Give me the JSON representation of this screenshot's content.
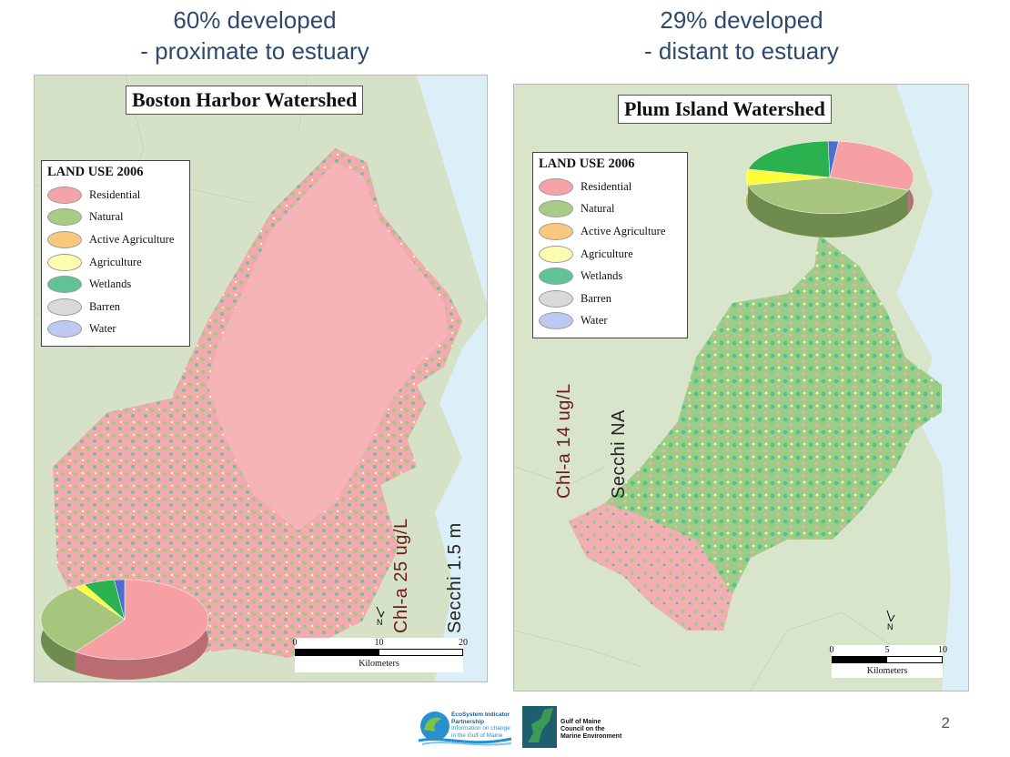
{
  "left": {
    "heading_line1": "60% developed",
    "heading_line2": "- proximate to estuary",
    "map_title": "Boston Harbor Watershed",
    "chla": "Chl-a 25 ug/L",
    "secchi": "Secchi 1.5 m",
    "scale": {
      "ticks": [
        "0",
        "10",
        "20"
      ],
      "unit": "Kilometers"
    },
    "pie_shares": [
      60,
      30,
      2,
      6,
      2
    ]
  },
  "right": {
    "heading_line1": "29% developed",
    "heading_line2": "- distant to estuary",
    "map_title": "Plum Island Watershed",
    "chla": "Chl-a 14 ug/L",
    "secchi": "Secchi NA",
    "scale": {
      "ticks": [
        "0",
        "5",
        "10"
      ],
      "unit": "Kilometers"
    },
    "pie_shares": [
      29,
      41,
      7,
      21,
      2
    ]
  },
  "legend": {
    "title": "LAND USE 2006",
    "items": [
      {
        "label": "Residential",
        "color": "#f4a3a8"
      },
      {
        "label": "Natural",
        "color": "#a8cc85"
      },
      {
        "label": "Active Agriculture",
        "color": "#f8c97c"
      },
      {
        "label": "Agriculture",
        "color": "#fdfdb0"
      },
      {
        "label": "Wetlands",
        "color": "#5fc397"
      },
      {
        "label": "Barren",
        "color": "#d9d9d9"
      },
      {
        "label": "Water",
        "color": "#bcc9f3"
      }
    ]
  },
  "north_label": "N",
  "page_number": "2",
  "logos": {
    "esip_lines": [
      "EcoSystem Indicator",
      "Partnership",
      "Information on change",
      "in the Gulf of Maine"
    ],
    "gomc_lines": [
      "Gulf of Maine",
      "Council on the",
      "Marine Environment"
    ]
  }
}
